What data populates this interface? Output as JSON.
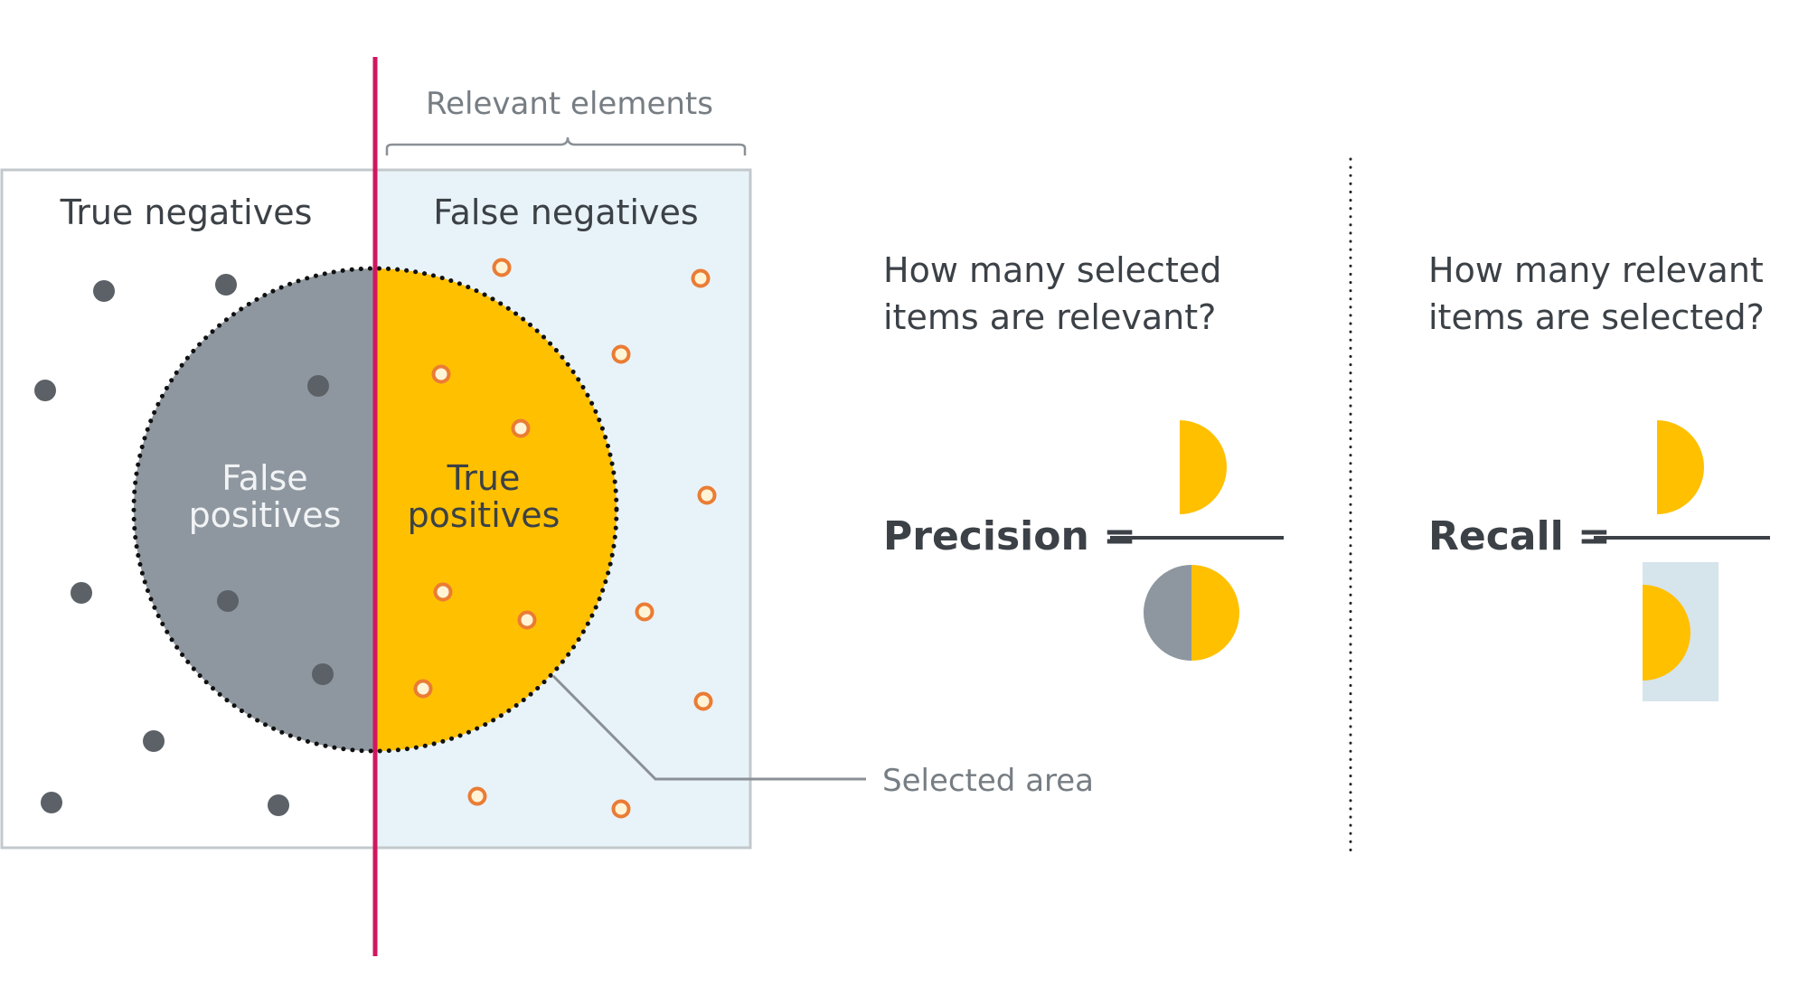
{
  "labels": {
    "relevant_elements": "Relevant elements",
    "true_negatives": "True negatives",
    "false_negatives": "False negatives",
    "false_positives_line1": "False",
    "false_positives_line2": "positives",
    "true_positives_line1": "True",
    "true_positives_line2": "positives",
    "selected_area": "Selected area"
  },
  "precision": {
    "question_line1": "How many selected",
    "question_line2": "items are relevant?",
    "formula": "Precision ="
  },
  "recall": {
    "question_line1": "How many relevant",
    "question_line2": "items are selected?",
    "formula": "Recall ="
  },
  "colors": {
    "true_positive_fill": "#ffc000",
    "false_positive_fill": "#8e979f",
    "relevant_area_fill": "#e8f3f9",
    "boundary_line": "#d0175e",
    "negative_dot": "#5b6167",
    "positive_dot_ring": "#ea7c35",
    "recall_box": "#d6e4ec",
    "text_dark": "#3b4146",
    "text_grey": "#767d83"
  }
}
